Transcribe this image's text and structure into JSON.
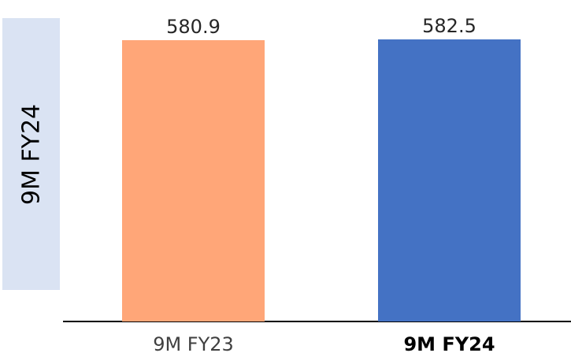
{
  "side_label": "9M FY24",
  "chart_data": {
    "type": "bar",
    "categories": [
      "9M FY23",
      "9M FY24"
    ],
    "values": [
      580.9,
      582.5
    ],
    "data_labels": [
      "580.9",
      "582.5"
    ],
    "colors": [
      "#ffa678",
      "#4472c4"
    ],
    "highlighted_category": "9M FY24",
    "category_label_colors": [
      "#404040",
      "#000000"
    ],
    "axis_color": "#000000",
    "title": "",
    "xlabel": "",
    "ylabel": "",
    "grid": false,
    "legend": "none"
  }
}
